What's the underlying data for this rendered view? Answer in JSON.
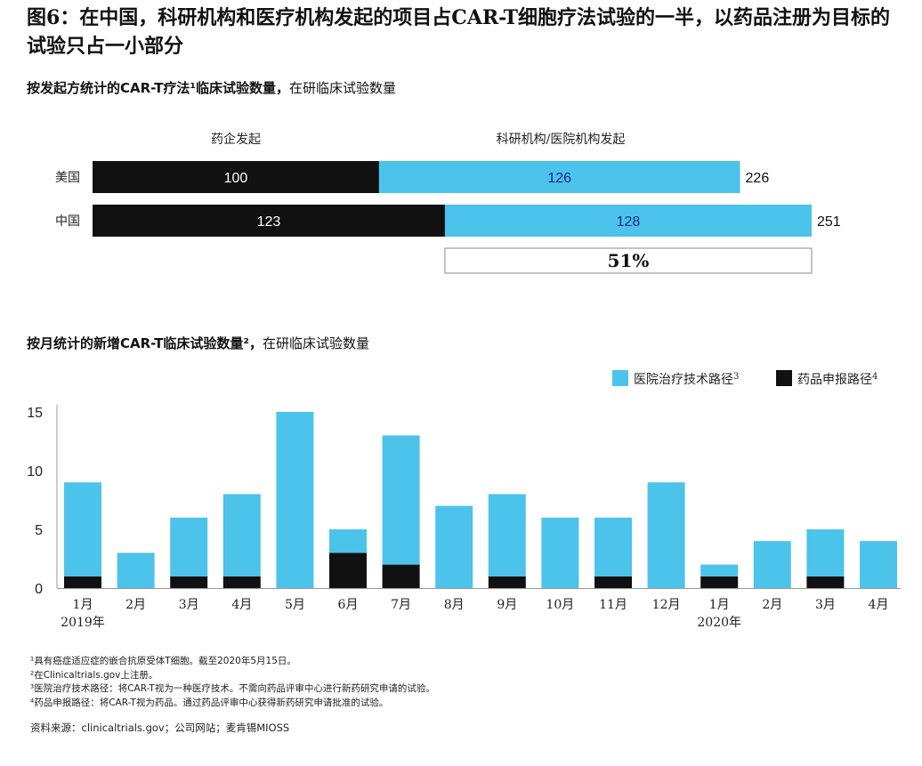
{
  "title": "图6：在中国，科研机构和医疗机构发起的项目占CAR-T细胞疗法试验的一半，以药品注册为目标的试验只占一小部分",
  "chart_data": [
    {
      "type": "bar",
      "orientation": "horizontal",
      "stacked": true,
      "subtitle": "按发起方统计的CAR-T疗法¹临床试验数量，",
      "unit": "在研临床试验数量",
      "column_headers": [
        "药企发起",
        "科研机构/医院机构发起"
      ],
      "categories": [
        "美国",
        "中国"
      ],
      "series": [
        {
          "name": "药企发起",
          "values": [
            100,
            123
          ],
          "color": "#111111"
        },
        {
          "name": "科研机构/医院机构发起",
          "values": [
            126,
            128
          ],
          "color": "#4cc3ea"
        }
      ],
      "totals": [
        226,
        251
      ],
      "annotation": "51%",
      "xlim": [
        0,
        251
      ]
    },
    {
      "type": "bar",
      "stacked": true,
      "subtitle": "按月统计的新增CAR-T临床试验数量²，",
      "unit": "在研临床试验数量",
      "categories": [
        "1月",
        "2月",
        "3月",
        "4月",
        "5月",
        "6月",
        "7月",
        "8月",
        "9月",
        "10月",
        "11月",
        "12月",
        "1月",
        "2月",
        "3月",
        "4月"
      ],
      "year_labels": [
        {
          "text": "2019年",
          "category_index": 0
        },
        {
          "text": "2020年",
          "category_index": 12
        }
      ],
      "series": [
        {
          "name": "药品申报路径",
          "sup": "4",
          "values": [
            1,
            0,
            1,
            1,
            0,
            3,
            2,
            0,
            1,
            0,
            1,
            0,
            1,
            0,
            1,
            0
          ],
          "color": "#111111"
        },
        {
          "name": "医院治疗技术路径",
          "sup": "3",
          "values": [
            8,
            3,
            5,
            7,
            15,
            2,
            11,
            7,
            7,
            6,
            5,
            9,
            1,
            4,
            4,
            4
          ],
          "color": "#4cc3ea"
        }
      ],
      "ylim": [
        0,
        15
      ],
      "yticks": [
        0,
        5,
        10,
        15
      ],
      "grid": false,
      "legend_position": "top-right"
    }
  ],
  "footnotes": [
    "¹具有癌症适应症的嵌合抗原受体T细胞。截至2020年5月15日。",
    "²在Clinicaltrials.gov上注册。",
    "³医院治疗技术路径：将CAR-T视为一种医疗技术。不需向药品评审中心进行新药研究申请的试验。",
    "⁴药品申报路径：将CAR-T视为药品。通过药品评审中心获得新药研究申请批准的试验。"
  ],
  "source": "资料来源：clinicaltrials.gov；公司网站；麦肯锡MIOSS"
}
